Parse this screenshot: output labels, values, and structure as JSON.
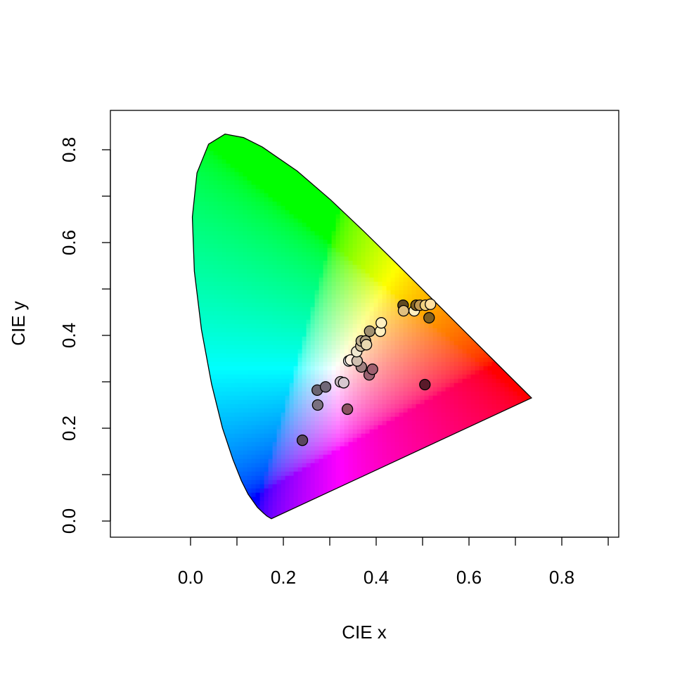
{
  "chart_data": {
    "type": "scatter",
    "x_label": "CIE x",
    "y_label": "CIE y",
    "xlim": [
      -0.1727,
      0.9227
    ],
    "ylim": [
      -0.0348,
      0.8848
    ],
    "xticks": [
      {
        "value": 0,
        "label": "0.0"
      },
      {
        "value": 0.1,
        "label": null
      },
      {
        "value": 0.2,
        "label": "0.2"
      },
      {
        "value": 0.3,
        "label": null
      },
      {
        "value": 0.4,
        "label": "0.4"
      },
      {
        "value": 0.5,
        "label": null
      },
      {
        "value": 0.6,
        "label": "0.6"
      },
      {
        "value": 0.7,
        "label": null
      },
      {
        "value": 0.8,
        "label": "0.8"
      },
      {
        "value": 0.9,
        "label": null
      }
    ],
    "yticks": [
      {
        "value": 0,
        "label": "0.0"
      },
      {
        "value": 0.1,
        "label": null
      },
      {
        "value": 0.2,
        "label": "0.2"
      },
      {
        "value": 0.3,
        "label": null
      },
      {
        "value": 0.4,
        "label": "0.4"
      },
      {
        "value": 0.5,
        "label": null
      },
      {
        "value": 0.6,
        "label": "0.6"
      },
      {
        "value": 0.7,
        "label": null
      },
      {
        "value": 0.8,
        "label": "0.8"
      }
    ],
    "spectral_locus": {
      "x": [
        0.1741,
        0.1644,
        0.1566,
        0.144,
        0.1241,
        0.1096,
        0.0913,
        0.0687,
        0.0454,
        0.0235,
        0.0082,
        0.0039,
        0.0139,
        0.0389,
        0.0743,
        0.1142,
        0.1547,
        0.2296,
        0.3016,
        0.3731,
        0.4441,
        0.5125,
        0.5752,
        0.627,
        0.6915,
        0.719,
        0.7347
      ],
      "y": [
        0.005,
        0.0109,
        0.0177,
        0.0297,
        0.0578,
        0.0868,
        0.1327,
        0.2007,
        0.295,
        0.4127,
        0.5384,
        0.6548,
        0.7502,
        0.812,
        0.8338,
        0.8262,
        0.8059,
        0.7543,
        0.6923,
        0.6245,
        0.5547,
        0.4866,
        0.4242,
        0.3725,
        0.3083,
        0.2809,
        0.2653
      ]
    },
    "points": {
      "x": [
        0.241,
        0.505,
        0.338,
        0.274,
        0.273,
        0.291,
        0.323,
        0.33,
        0.385,
        0.392,
        0.368,
        0.341,
        0.345,
        0.359,
        0.358,
        0.367,
        0.368,
        0.377,
        0.379,
        0.386,
        0.409,
        0.411,
        0.458,
        0.459,
        0.482,
        0.486,
        0.494,
        0.506,
        0.517,
        0.514
      ],
      "y": [
        0.174,
        0.294,
        0.241,
        0.25,
        0.282,
        0.289,
        0.3,
        0.298,
        0.315,
        0.327,
        0.332,
        0.345,
        0.347,
        0.345,
        0.365,
        0.377,
        0.388,
        0.388,
        0.38,
        0.409,
        0.409,
        0.427,
        0.465,
        0.453,
        0.453,
        0.465,
        0.465,
        0.465,
        0.467,
        0.438
      ],
      "colors": [
        "#5a4660",
        "#5a1a2a",
        "#8a5060",
        "#7a7080",
        "#6a6472",
        "#706878",
        "#c8b8c0",
        "#d8c8d0",
        "#9a6070",
        "#a06070",
        "#a08080",
        "#f0f0f0",
        "#fff0e0",
        "#d0c0b0",
        "#f0e8d0",
        "#d0c0a0",
        "#c0b090",
        "#b0a080",
        "#e8d8b0",
        "#a09070",
        "#fff0c0",
        "#fff0c0",
        "#604a20",
        "#e0c080",
        "#fff0c0",
        "#806020",
        "#c09850",
        "#f0d080",
        "#ffe0a0",
        "#806020"
      ]
    }
  }
}
